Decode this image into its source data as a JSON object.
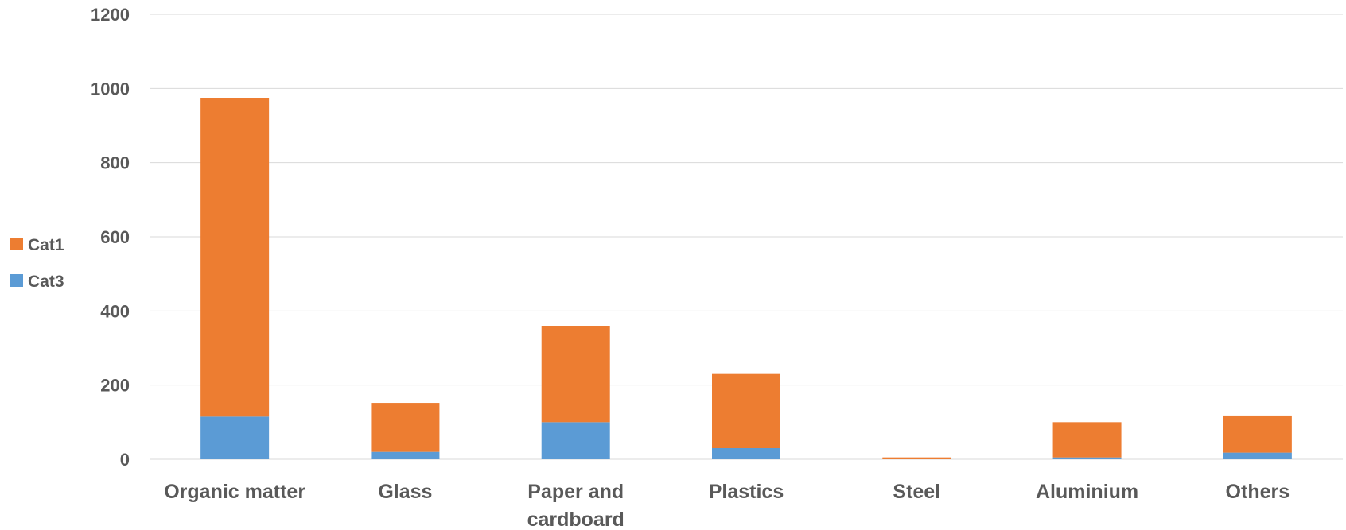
{
  "chart_data": {
    "type": "bar",
    "stacked": true,
    "categories": [
      [
        "Organic matter"
      ],
      [
        "Glass"
      ],
      [
        "Paper and",
        "cardboard"
      ],
      [
        "Plastics"
      ],
      [
        "Steel"
      ],
      [
        "Aluminium"
      ],
      [
        "Others"
      ]
    ],
    "series": [
      {
        "name": "Cat3",
        "color": "#5b9bd5",
        "values": [
          115,
          20,
          100,
          30,
          0,
          5,
          18
        ]
      },
      {
        "name": "Cat1",
        "color": "#ed7d31",
        "values": [
          860,
          132,
          260,
          200,
          5,
          95,
          100
        ]
      }
    ],
    "legend_order": [
      "Cat1",
      "Cat3"
    ],
    "legend_position": "left",
    "ylim": [
      0,
      1200
    ],
    "yticks": [
      0,
      200,
      400,
      600,
      800,
      1000,
      1200
    ],
    "grid": true,
    "title": "",
    "xlabel": "",
    "ylabel": ""
  }
}
